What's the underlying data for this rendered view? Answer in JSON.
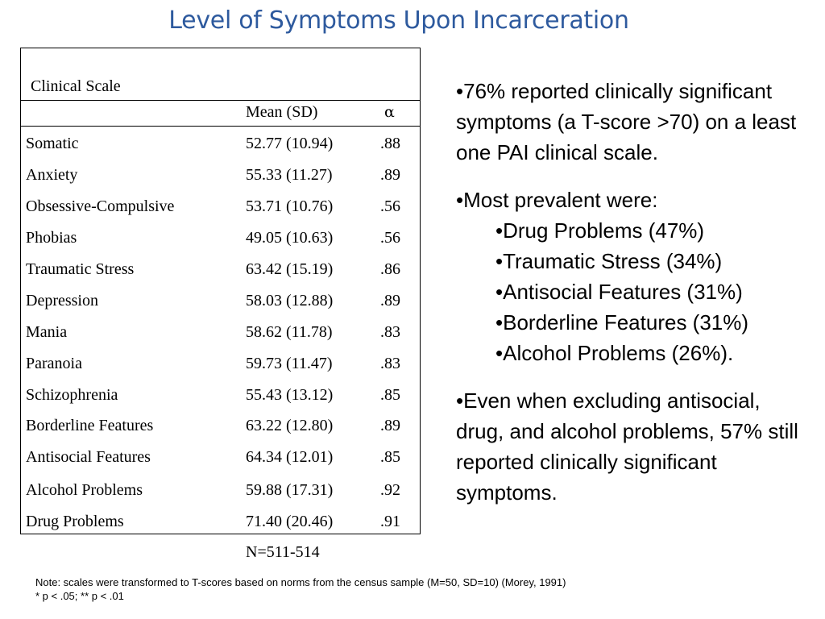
{
  "title": "Level of Symptoms Upon Incarceration",
  "table": {
    "header_scale": "Clinical Scale",
    "header_mean": "Mean (SD)",
    "header_alpha": "α",
    "rows": [
      {
        "scale": "Somatic",
        "mean": "52.77 (10.94)",
        "alpha": ".88"
      },
      {
        "scale": "Anxiety",
        "mean": "55.33 (11.27)",
        "alpha": ".89"
      },
      {
        "scale": "Obsessive-Compulsive",
        "mean": "53.71 (10.76)",
        "alpha": ".56"
      },
      {
        "scale": "Phobias",
        "mean": "49.05 (10.63)",
        "alpha": ".56"
      },
      {
        "scale": "Traumatic Stress",
        "mean": "63.42 (15.19)",
        "alpha": ".86"
      },
      {
        "scale": "Depression",
        "mean": "58.03 (12.88)",
        "alpha": ".89"
      },
      {
        "scale": "Mania",
        "mean": "58.62 (11.78)",
        "alpha": ".83"
      },
      {
        "scale": "Paranoia",
        "mean": "59.73 (11.47)",
        "alpha": ".83"
      },
      {
        "scale": "Schizophrenia",
        "mean": "55.43 (13.12)",
        "alpha": ".85"
      },
      {
        "scale": "Borderline Features",
        "mean": "63.22 (12.80)",
        "alpha": ".89"
      },
      {
        "scale": "Antisocial Features",
        "mean": "64.34 (12.01)",
        "alpha": ".85"
      },
      {
        "scale": "Alcohol Problems",
        "mean": "59.88 (17.31)",
        "alpha": ".92"
      },
      {
        "scale": "Drug Problems",
        "mean": "71.40 (20.46)",
        "alpha": ".91"
      }
    ],
    "n_label": "N=511-514"
  },
  "bullets": {
    "b1": "•76% reported clinically significant symptoms (a T-score >70) on a least one PAI clinical scale.",
    "b2": "•Most prevalent were:",
    "sub": [
      "•Drug Problems (47%)",
      "•Traumatic Stress (34%)",
      "•Antisocial Features (31%)",
      "•Borderline Features (31%)",
      "•Alcohol Problems (26%)."
    ],
    "b3": "•Even when excluding antisocial, drug, and alcohol problems, 57% still reported clinically significant symptoms."
  },
  "note": {
    "line1": "Note: scales were transformed to T-scores based on norms from the census sample (M=50, SD=10) (Morey, 1991)",
    "line2": "* p < .05; ** p < .01"
  }
}
